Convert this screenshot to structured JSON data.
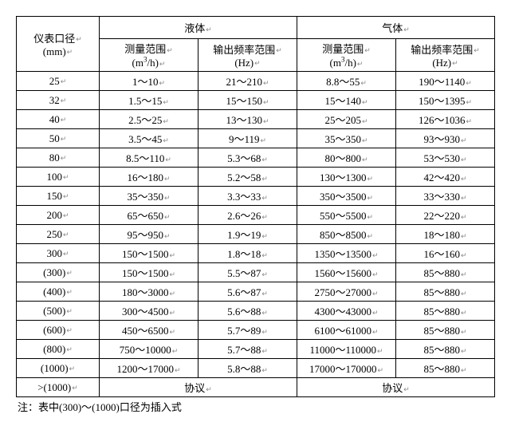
{
  "colors": {
    "text": "#000000",
    "background": "#ffffff",
    "border": "#000000",
    "paragraph_mark": "#888888"
  },
  "fonts": {
    "family": "SimSun",
    "size_pt": 10
  },
  "header": {
    "size_label_line1": "仪表口径",
    "size_label_line2": "(mm)",
    "liquid_group": "液体",
    "gas_group": "气体",
    "range_label_line1": "测量范围",
    "range_unit": "(m³/h)",
    "freq_label_line1": "输出频率范围",
    "freq_unit": "(Hz)"
  },
  "rows": [
    {
      "size": "25",
      "liq_range": "1～10",
      "liq_freq": "21～210",
      "gas_range": "8.8～55",
      "gas_freq": "190～1140"
    },
    {
      "size": "32",
      "liq_range": "1.5～15",
      "liq_freq": "15～150",
      "gas_range": "15～140",
      "gas_freq": "150～1395"
    },
    {
      "size": "40",
      "liq_range": "2.5～25",
      "liq_freq": "13～130",
      "gas_range": "25～205",
      "gas_freq": "126～1036"
    },
    {
      "size": "50",
      "liq_range": "3.5～45",
      "liq_freq": "9～119",
      "gas_range": "35～350",
      "gas_freq": "93～930"
    },
    {
      "size": "80",
      "liq_range": "8.5～110",
      "liq_freq": "5.3～68",
      "gas_range": "80～800",
      "gas_freq": "53～530"
    },
    {
      "size": "100",
      "liq_range": "16～180",
      "liq_freq": "5.2～58",
      "gas_range": "130～1300",
      "gas_freq": "42～420"
    },
    {
      "size": "150",
      "liq_range": "35～350",
      "liq_freq": "3.3～33",
      "gas_range": "350～3500",
      "gas_freq": "33～330"
    },
    {
      "size": "200",
      "liq_range": "65～650",
      "liq_freq": "2.6～26",
      "gas_range": "550～5500",
      "gas_freq": "22～220"
    },
    {
      "size": "250",
      "liq_range": "95～950",
      "liq_freq": "1.9～19",
      "gas_range": "850～8500",
      "gas_freq": "18～180"
    },
    {
      "size": "300",
      "liq_range": "150～1500",
      "liq_freq": "1.8～18",
      "gas_range": "1350～13500",
      "gas_freq": "16～160"
    },
    {
      "size": "(300)",
      "liq_range": "150～1500",
      "liq_freq": "5.5～87",
      "gas_range": "1560～15600",
      "gas_freq": "85～880"
    },
    {
      "size": "(400)",
      "liq_range": "180～3000",
      "liq_freq": "5.6～87",
      "gas_range": "2750～27000",
      "gas_freq": "85～880"
    },
    {
      "size": "(500)",
      "liq_range": "300～4500",
      "liq_freq": "5.6～88",
      "gas_range": "4300～43000",
      "gas_freq": "85～880"
    },
    {
      "size": "(600)",
      "liq_range": "450～6500",
      "liq_freq": "5.7～89",
      "gas_range": "6100～61000",
      "gas_freq": "85～880"
    },
    {
      "size": "(800)",
      "liq_range": "750～10000",
      "liq_freq": "5.7～88",
      "gas_range": "11000～110000",
      "gas_freq": "85～880"
    },
    {
      "size": "(1000)",
      "liq_range": "1200～17000",
      "liq_freq": "5.8～88",
      "gas_range": "17000～170000",
      "gas_freq": "85～880"
    }
  ],
  "last_row": {
    "size": ">(1000)",
    "liq_merged": "协议",
    "gas_merged": "协议"
  },
  "footnote": "注：表中(300)～(1000)口径为插入式"
}
